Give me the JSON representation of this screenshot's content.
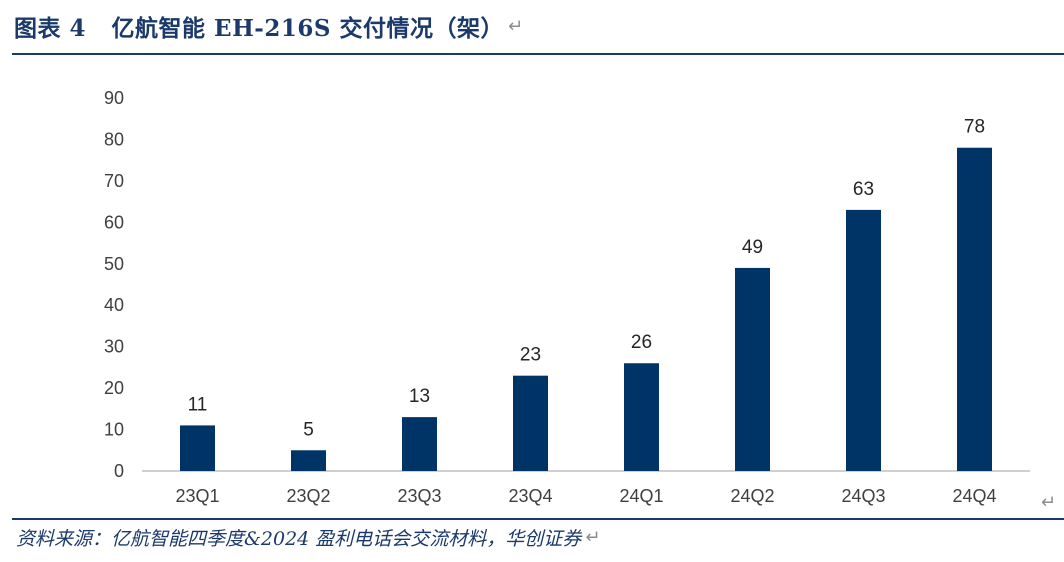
{
  "header": {
    "title": "图表 4   亿航智能 EH-216S 交付情况（架）",
    "return_mark": "↵"
  },
  "footer": {
    "source": "资料来源：亿航智能四季度&2024 盈利电话会交流材料，华创证券",
    "return_mark": "↵"
  },
  "colors": {
    "bar": "#003366",
    "rule": "#1b3a6b",
    "text": "#404040",
    "axis": "#bfbfbf"
  },
  "chart_data": {
    "type": "bar",
    "title": "",
    "xlabel": "",
    "ylabel": "",
    "categories": [
      "23Q1",
      "23Q2",
      "23Q3",
      "23Q4",
      "24Q1",
      "24Q2",
      "24Q3",
      "24Q4"
    ],
    "values": [
      11,
      5,
      13,
      23,
      26,
      49,
      63,
      78
    ],
    "ylim": [
      0,
      90
    ],
    "yticks": [
      "0",
      "10",
      "20",
      "30",
      "40",
      "50",
      "60",
      "70",
      "80",
      "90"
    ],
    "grid": false,
    "legend": "none",
    "data_labels": true
  }
}
